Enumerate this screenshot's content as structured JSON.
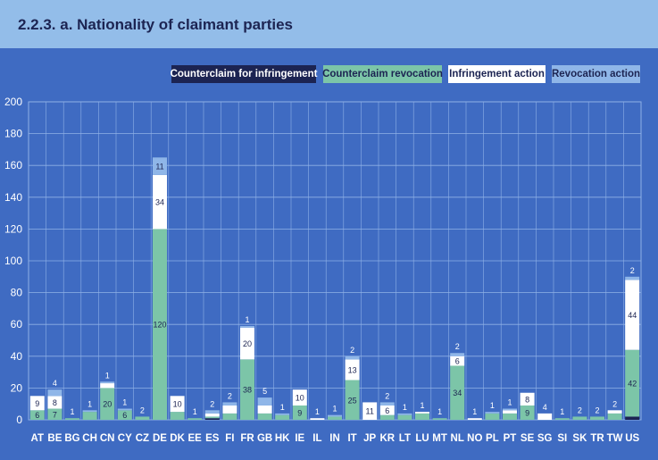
{
  "title": "2.2.3. a. Nationality of claimant parties",
  "colors": {
    "counterclaim_infringement": "#1c2452",
    "counterclaim_revocation": "#7cc5a8",
    "infringement_action": "#ffffff",
    "revocation_action": "#8fb6e8",
    "background": "#3f6bc2",
    "header": "#93bde9",
    "grid": "#8fb1e6"
  },
  "chart_data": {
    "type": "bar",
    "stacked": true,
    "title": "2.2.3. a. Nationality of claimant parties",
    "xlabel": "",
    "ylabel": "",
    "ylim": [
      0,
      200
    ],
    "yticks": [
      "0",
      "20",
      "40",
      "60",
      "80",
      "100",
      "120",
      "140",
      "160",
      "180",
      "200"
    ],
    "grid": true,
    "legend_position": "top",
    "categories": [
      "AT",
      "BE",
      "BG",
      "CH",
      "CN",
      "CY",
      "CZ",
      "DE",
      "DK",
      "EE",
      "ES",
      "FI",
      "FR",
      "GB",
      "HK",
      "IE",
      "IL",
      "IN",
      "IT",
      "JP",
      "KR",
      "LT",
      "LU",
      "MT",
      "NL",
      "NO",
      "PL",
      "PT",
      "SE",
      "SG",
      "SI",
      "SK",
      "TR",
      "TW",
      "US"
    ],
    "series": [
      {
        "name": "Counterclaim for infringement",
        "values": [
          0,
          0,
          0,
          0,
          0,
          0,
          0,
          0,
          0,
          0,
          1,
          0,
          0,
          0,
          0,
          0,
          0,
          0,
          0,
          0,
          0,
          0,
          0,
          0,
          0,
          0,
          0,
          0,
          0,
          0,
          0,
          0,
          0,
          0,
          2
        ]
      },
      {
        "name": "Counterclaim revocation",
        "values": [
          6,
          7,
          1,
          5,
          20,
          6,
          2,
          120,
          5,
          1,
          1,
          4,
          38,
          4,
          3,
          9,
          0,
          2,
          25,
          0,
          3,
          3,
          4,
          1,
          34,
          0,
          4,
          4,
          9,
          0,
          1,
          2,
          2,
          4,
          42
        ]
      },
      {
        "name": "Infringement action",
        "values": [
          9,
          8,
          0,
          0,
          3,
          0,
          0,
          34,
          10,
          0,
          2,
          5,
          20,
          5,
          0,
          10,
          1,
          0,
          13,
          11,
          6,
          0,
          1,
          0,
          6,
          1,
          0,
          2,
          8,
          4,
          0,
          0,
          0,
          2,
          44
        ]
      },
      {
        "name": "Revocation action",
        "values": [
          0,
          4,
          0,
          1,
          1,
          1,
          0,
          11,
          0,
          0,
          2,
          2,
          1,
          5,
          1,
          0,
          0,
          1,
          2,
          0,
          2,
          1,
          0,
          0,
          2,
          0,
          1,
          1,
          0,
          0,
          0,
          0,
          0,
          0,
          2
        ]
      }
    ]
  }
}
